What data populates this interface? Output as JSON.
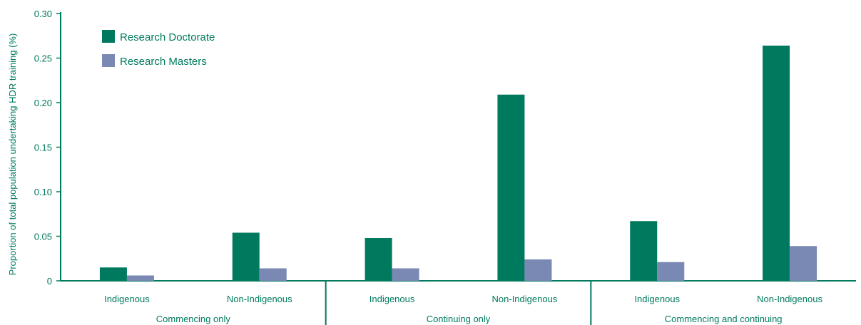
{
  "chart_data": {
    "type": "bar",
    "title": "",
    "ylabel": "Proportion of total population undertaking HDR training (%)",
    "xlabel": "",
    "ylim": [
      0,
      0.3
    ],
    "yticks": [
      "0",
      "0.05",
      "0.10",
      "0.15",
      "0.20",
      "0.25",
      "0.30"
    ],
    "yticks_values": [
      0,
      0.05,
      0.1,
      0.15,
      0.2,
      0.25,
      0.3
    ],
    "grid": false,
    "legend_position": "top-left",
    "categories": [
      "Indigenous",
      "Non-Indigenous",
      "Indigenous",
      "Non-Indigenous",
      "Indigenous",
      "Non-Indigenous"
    ],
    "groups": [
      {
        "label": "Commencing only",
        "span": 2
      },
      {
        "label": "Continuing only",
        "span": 2
      },
      {
        "label": "Commencing and continuing",
        "span": 2
      }
    ],
    "series": [
      {
        "name": "Research Doctorate",
        "color": "#007a5e",
        "values": [
          0.015,
          0.054,
          0.048,
          0.209,
          0.067,
          0.264
        ]
      },
      {
        "name": "Research Masters",
        "color": "#7a88b4",
        "values": [
          0.006,
          0.014,
          0.014,
          0.024,
          0.021,
          0.039
        ]
      }
    ],
    "axis_color": "#007a5e"
  }
}
